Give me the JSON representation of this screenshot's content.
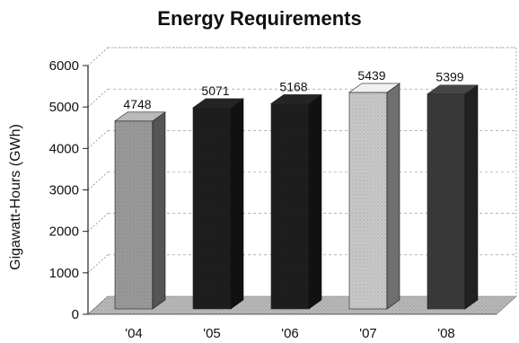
{
  "chart_data": {
    "type": "bar",
    "title": "Energy Requirements",
    "xlabel": "",
    "ylabel": "Gigawatt-Hours (GWh)",
    "categories": [
      "'04",
      "'05",
      "'06",
      "'07",
      "'08"
    ],
    "values": [
      4748,
      5071,
      5168,
      5439,
      5399
    ],
    "data_labels": [
      "4748",
      "5071",
      "5168",
      "5439",
      "5399"
    ],
    "ylim": [
      0,
      6000
    ],
    "yticks": [
      0,
      1000,
      2000,
      3000,
      4000,
      5000,
      6000
    ],
    "ytick_labels": [
      "0",
      "1000",
      "2000",
      "3000",
      "4000",
      "5000",
      "6000"
    ],
    "grid": true,
    "legend": "none",
    "style": "3d",
    "bar_colors": [
      "#9a9a9a",
      "#1e1e1e",
      "#1e1e1e",
      "#c9c9c9",
      "#3a3a3a"
    ]
  }
}
